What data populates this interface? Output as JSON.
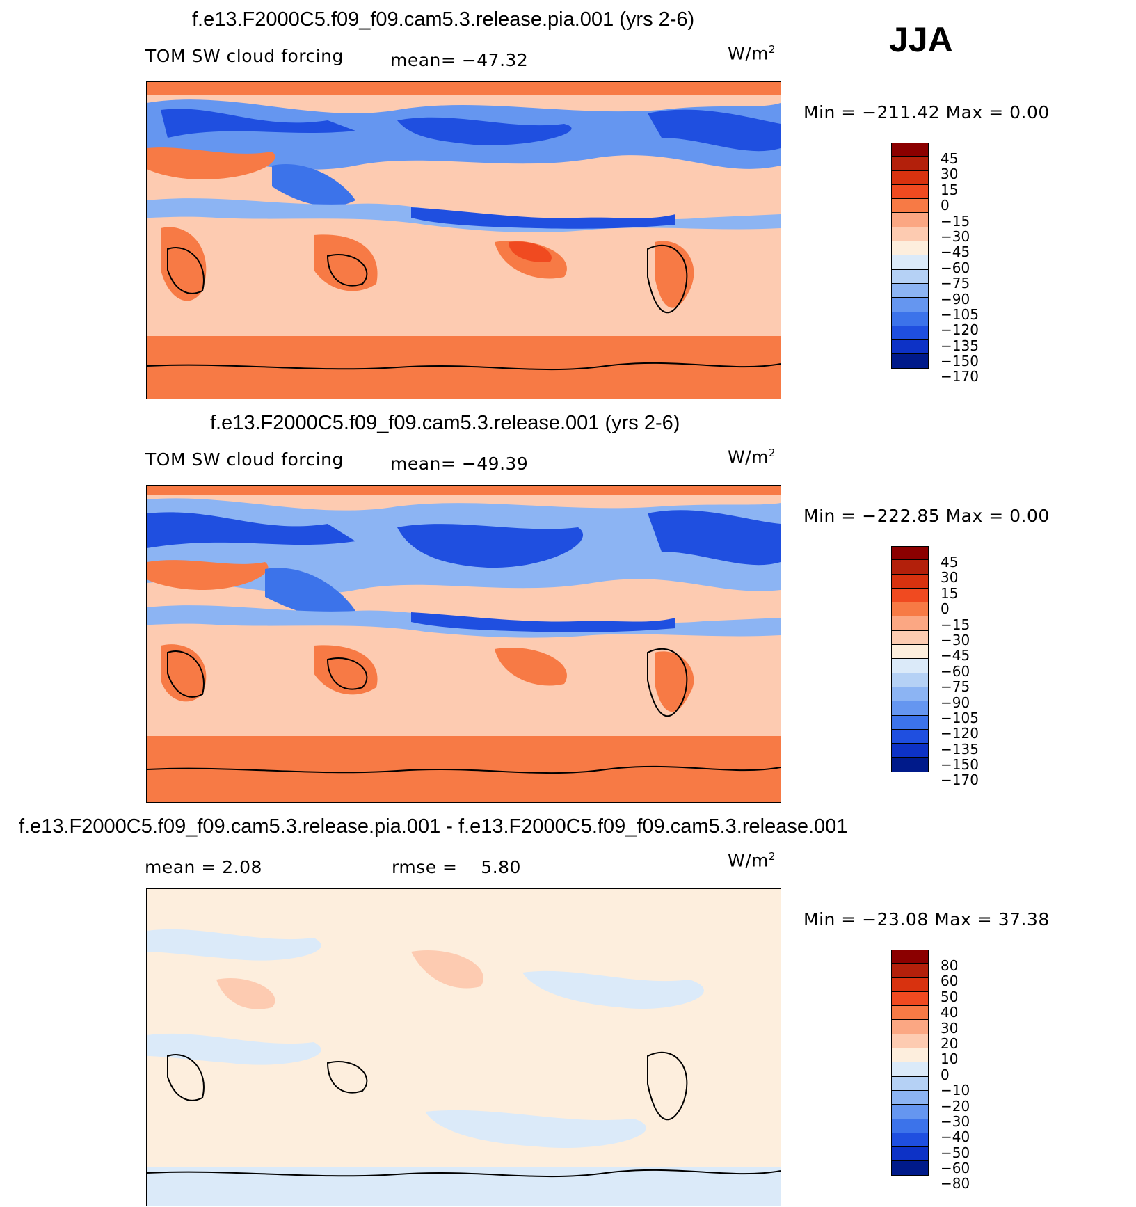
{
  "season": "JJA",
  "units_prefix": "W/m",
  "units_exp": "2",
  "panels": [
    {
      "title": "f.e13.F2000C5.f09_f09.cam5.3.release.pia.001 (yrs 2-6)",
      "left_label": "TOM SW cloud forcing",
      "stat_label": "mean=",
      "stat_value": "−47.32",
      "minmax": "Min = −211.42 Max =    0.00",
      "colorbar": {
        "colors": [
          "#8b0000",
          "#b3200b",
          "#d8320f",
          "#f04a20",
          "#f77a45",
          "#fba783",
          "#fdcbb1",
          "#fdeedd",
          "#dbeaf9",
          "#b5d1f5",
          "#8cb4f3",
          "#6596f0",
          "#3c73ea",
          "#1f4fe0",
          "#0d32c6",
          "#001a8a"
        ],
        "labels": [
          "45",
          "30",
          "15",
          "0",
          "−15",
          "−30",
          "−45",
          "−60",
          "−75",
          "−90",
          "−105",
          "−120",
          "−135",
          "−150",
          "−170"
        ]
      }
    },
    {
      "title": "f.e13.F2000C5.f09_f09.cam5.3.release.001 (yrs 2-6)",
      "left_label": "TOM SW cloud forcing",
      "stat_label": "mean=",
      "stat_value": "−49.39",
      "minmax": "Min = −222.85 Max =    0.00",
      "colorbar": {
        "colors": [
          "#8b0000",
          "#b3200b",
          "#d8320f",
          "#f04a20",
          "#f77a45",
          "#fba783",
          "#fdcbb1",
          "#fdeedd",
          "#dbeaf9",
          "#b5d1f5",
          "#8cb4f3",
          "#6596f0",
          "#3c73ea",
          "#1f4fe0",
          "#0d32c6",
          "#001a8a"
        ],
        "labels": [
          "45",
          "30",
          "15",
          "0",
          "−15",
          "−30",
          "−45",
          "−60",
          "−75",
          "−90",
          "−105",
          "−120",
          "−135",
          "−150",
          "−170"
        ]
      }
    },
    {
      "title": "f.e13.F2000C5.f09_f09.cam5.3.release.pia.001 - f.e13.F2000C5.f09_f09.cam5.3.release.001",
      "left_label": "mean =    2.08",
      "stat_label": "rmse =",
      "stat_value": "5.80",
      "minmax": "Min = −23.08 Max =   37.38",
      "colorbar": {
        "colors": [
          "#8b0000",
          "#b3200b",
          "#d8320f",
          "#f04a20",
          "#f77a45",
          "#fba783",
          "#fdcbb1",
          "#fdeedd",
          "#dbeaf9",
          "#b5d1f5",
          "#8cb4f3",
          "#6596f0",
          "#3c73ea",
          "#1f4fe0",
          "#0d32c6",
          "#001a8a"
        ],
        "labels": [
          "80",
          "60",
          "50",
          "40",
          "30",
          "20",
          "10",
          "0",
          "−10",
          "−20",
          "−30",
          "−40",
          "−50",
          "−60",
          "−80"
        ]
      }
    }
  ],
  "chart_data": [
    {
      "type": "heatmap",
      "title": "f.e13.F2000C5.f09_f09.cam5.3.release.pia.001 (yrs 2-6)",
      "variable": "TOM SW cloud forcing",
      "units": "W/m2",
      "mean": -47.32,
      "min": -211.42,
      "max": 0.0,
      "levels": [
        -170,
        -150,
        -135,
        -120,
        -105,
        -90,
        -75,
        -60,
        -45,
        -30,
        -15,
        0,
        15,
        30,
        45
      ]
    },
    {
      "type": "heatmap",
      "title": "f.e13.F2000C5.f09_f09.cam5.3.release.001 (yrs 2-6)",
      "variable": "TOM SW cloud forcing",
      "units": "W/m2",
      "mean": -49.39,
      "min": -222.85,
      "max": 0.0,
      "levels": [
        -170,
        -150,
        -135,
        -120,
        -105,
        -90,
        -75,
        -60,
        -45,
        -30,
        -15,
        0,
        15,
        30,
        45
      ]
    },
    {
      "type": "heatmap",
      "title": "f.e13.F2000C5.f09_f09.cam5.3.release.pia.001 - f.e13.F2000C5.f09_f09.cam5.3.release.001",
      "units": "W/m2",
      "mean": 2.08,
      "rmse": 5.8,
      "min": -23.08,
      "max": 37.38,
      "levels": [
        -80,
        -60,
        -50,
        -40,
        -30,
        -20,
        -10,
        0,
        10,
        20,
        30,
        40,
        50,
        60,
        80
      ]
    }
  ]
}
